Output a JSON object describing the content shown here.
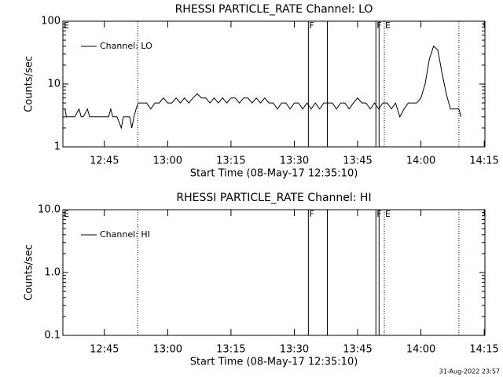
{
  "chart_data": [
    {
      "type": "line",
      "title": "RHESSI PARTICLE_RATE Channel: LO",
      "xlabel": "Start Time (08-May-17 12:35:10)",
      "ylabel": "Counts/sec",
      "log_y": true,
      "xlim": [
        "12:35:10",
        "14:15:10"
      ],
      "xticks": [
        "12:45",
        "13:00",
        "13:15",
        "13:30",
        "13:45",
        "14:00",
        "14:15"
      ],
      "ylim": [
        1,
        100
      ],
      "yticks": [
        1,
        10,
        100
      ],
      "yminorticks": [
        2,
        3,
        4,
        5,
        6,
        7,
        8,
        9,
        20,
        30,
        40,
        50,
        60,
        70,
        80,
        90
      ],
      "legend": "upper left",
      "x": [
        "12:35:40",
        "12:36:00",
        "12:37:00",
        "12:38:00",
        "12:39:00",
        "12:39:30",
        "12:40:00",
        "12:41:00",
        "12:41:30",
        "12:42:00",
        "12:43:00",
        "12:44:00",
        "12:45:00",
        "12:46:00",
        "12:46:30",
        "12:47:00",
        "12:48:00",
        "12:49:00",
        "12:49:30",
        "12:50:00",
        "12:51:00",
        "12:51:30",
        "12:52:00",
        "12:52:30",
        "12:53:00",
        "12:54:00",
        "12:55:00",
        "12:56:00",
        "12:57:00",
        "12:58:00",
        "12:59:00",
        "13:00:00",
        "13:01:00",
        "13:02:00",
        "13:03:00",
        "13:04:00",
        "13:05:00",
        "13:06:00",
        "13:07:00",
        "13:08:00",
        "13:09:00",
        "13:10:00",
        "13:11:00",
        "13:12:00",
        "13:13:00",
        "13:14:00",
        "13:15:00",
        "13:16:00",
        "13:17:00",
        "13:18:00",
        "13:19:00",
        "13:20:00",
        "13:21:00",
        "13:22:00",
        "13:23:00",
        "13:24:00",
        "13:25:00",
        "13:26:00",
        "13:27:00",
        "13:28:00",
        "13:29:00",
        "13:30:00",
        "13:31:00",
        "13:32:00",
        "13:33:00",
        "13:34:00",
        "13:35:00",
        "13:36:00",
        "13:37:00",
        "13:38:00",
        "13:39:00",
        "13:40:00",
        "13:41:00",
        "13:42:00",
        "13:43:00",
        "13:44:00",
        "13:45:00",
        "13:46:00",
        "13:47:00",
        "13:48:00",
        "13:49:00",
        "13:50:00",
        "13:51:00",
        "13:52:00",
        "13:53:00",
        "13:54:00",
        "13:55:00",
        "13:56:00",
        "13:57:00",
        "13:58:00",
        "13:59:00",
        "14:00:00",
        "14:01:00",
        "14:02:00",
        "14:03:00",
        "14:04:00",
        "14:05:00",
        "14:06:00",
        "14:07:00",
        "14:08:00",
        "14:09:00",
        "14:09:30"
      ],
      "series": [
        {
          "name": "Channel: LO",
          "color": "#000000",
          "values": [
            4,
            3,
            3,
            3,
            4,
            3,
            3,
            4,
            3,
            3,
            3,
            3,
            3,
            3,
            4,
            3,
            3,
            2,
            3,
            3,
            3,
            2,
            3,
            4,
            5,
            5,
            5,
            4,
            5,
            5,
            6,
            5,
            5,
            6,
            5,
            6,
            5,
            6,
            7,
            6,
            6,
            5,
            6,
            5,
            6,
            5,
            6,
            6,
            5,
            6,
            6,
            5,
            6,
            5,
            6,
            5,
            5,
            4,
            5,
            5,
            4,
            5,
            5,
            4,
            5,
            4,
            5,
            4,
            5,
            5,
            5,
            4,
            5,
            5,
            4,
            5,
            6,
            5,
            5,
            4,
            5,
            4,
            5,
            5,
            4,
            5,
            3,
            4,
            5,
            5,
            5,
            6,
            10,
            25,
            40,
            35,
            15,
            7,
            4,
            4,
            4,
            3
          ]
        }
      ],
      "markers": [
        {
          "x": "12:35:10",
          "label": "E",
          "style": "dotted"
        },
        {
          "x": "12:52:55",
          "style": "dotted"
        },
        {
          "x": "13:33:20",
          "label": "F",
          "style": "solid"
        },
        {
          "x": "13:37:50",
          "style": "solid"
        },
        {
          "x": "13:49:20",
          "label": "F",
          "style": "solid"
        },
        {
          "x": "13:50:05",
          "style": "solid"
        },
        {
          "x": "13:51:20",
          "label": "E",
          "style": "dotted"
        },
        {
          "x": "14:09:00",
          "style": "dotted"
        }
      ]
    },
    {
      "type": "line",
      "title": "RHESSI PARTICLE_RATE Channel: HI",
      "xlabel": "Start Time (08-May-17 12:35:10)",
      "ylabel": "Counts/sec",
      "log_y": true,
      "xlim": [
        "12:35:10",
        "14:15:10"
      ],
      "xticks": [
        "12:45",
        "13:00",
        "13:15",
        "13:30",
        "13:45",
        "14:00",
        "14:15"
      ],
      "ylim": [
        0.1,
        10
      ],
      "yticks": [
        0.1,
        {
          "value": 1,
          "label": "1.0"
        },
        {
          "value": 10,
          "label": "10.0"
        }
      ],
      "yminorticks": [
        0.2,
        0.3,
        0.4,
        0.5,
        0.6,
        0.7,
        0.8,
        0.9,
        2,
        3,
        4,
        5,
        6,
        7,
        8,
        9
      ],
      "legend": "upper left",
      "x": [],
      "series": [
        {
          "name": "Channel: HI",
          "color": "#000000",
          "values": []
        }
      ],
      "markers": [
        {
          "x": "12:35:10",
          "label": "E",
          "style": "dotted"
        },
        {
          "x": "12:52:55",
          "style": "dotted"
        },
        {
          "x": "13:33:20",
          "label": "F",
          "style": "solid"
        },
        {
          "x": "13:37:50",
          "style": "solid"
        },
        {
          "x": "13:49:20",
          "label": "F",
          "style": "solid"
        },
        {
          "x": "13:50:05",
          "style": "solid"
        },
        {
          "x": "13:51:20",
          "label": "E",
          "style": "dotted"
        },
        {
          "x": "14:09:00",
          "style": "dotted"
        }
      ]
    }
  ],
  "footer": "31-Aug-2022 23:57"
}
